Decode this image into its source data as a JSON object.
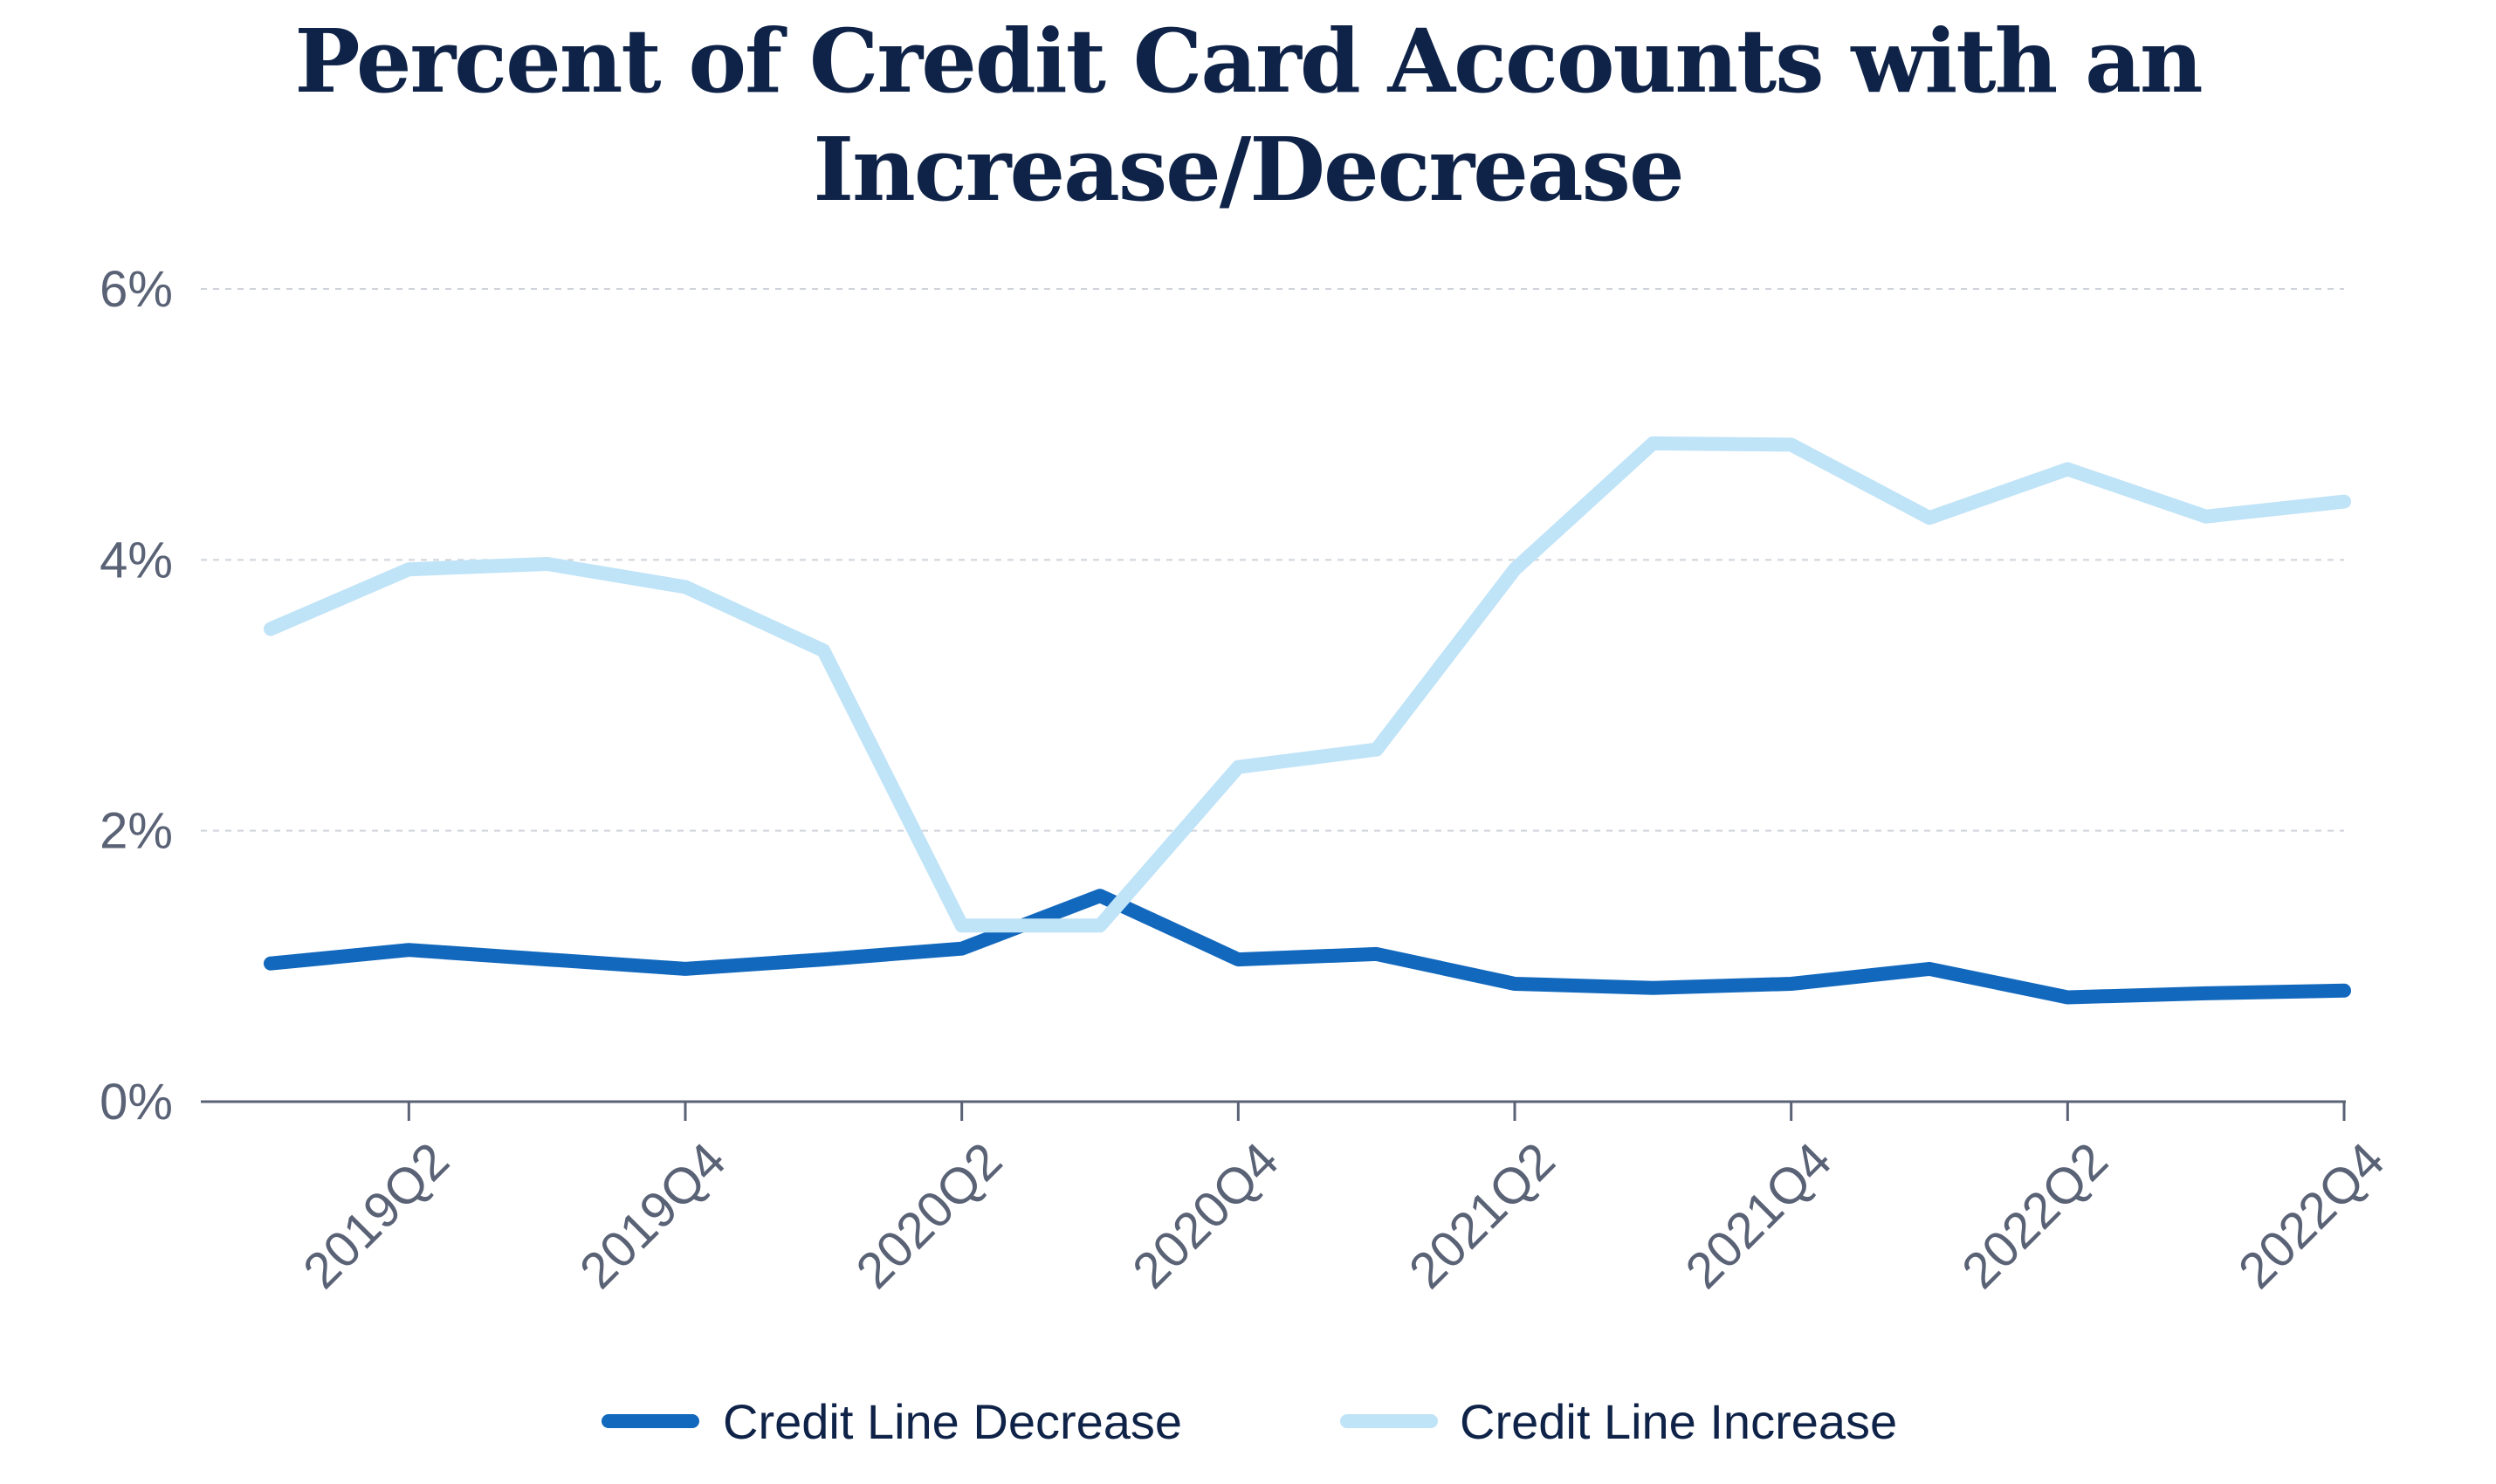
{
  "colors": {
    "title": "#0f2348",
    "axis_text": "#5a6276",
    "axis_line": "#5a6276",
    "grid": "#cfd3da",
    "decrease": "#1268bd",
    "increase": "#bfe3f7"
  },
  "chart_data": {
    "type": "line",
    "title_lines": [
      "Percent of Credit Card Accounts with an",
      "Increase/Decrease"
    ],
    "xlabel": "",
    "ylabel": "",
    "x": [
      "2019Q1",
      "2019Q2",
      "2019Q3",
      "2019Q4",
      "2020Q1",
      "2020Q2",
      "2020Q3",
      "2020Q4",
      "2021Q1",
      "2021Q2",
      "2021Q3",
      "2021Q4",
      "2022Q1",
      "2022Q2",
      "2022Q3",
      "2022Q4"
    ],
    "x_tick_labels": [
      "2019Q2",
      "2019Q4",
      "2020Q2",
      "2020Q4",
      "2021Q2",
      "2021Q4",
      "2022Q2",
      "2022Q4"
    ],
    "y_ticks": [
      0,
      2,
      4,
      6
    ],
    "y_tick_labels": [
      "0%",
      "2%",
      "4%",
      "6%"
    ],
    "ylim": [
      0,
      6
    ],
    "grid": "horizontal dashed",
    "legend_position": "bottom",
    "series": [
      {
        "name": "Credit Line Decrease",
        "color": "#1268bd",
        "values": [
          1.02,
          1.12,
          1.05,
          0.98,
          1.05,
          1.13,
          1.52,
          1.05,
          1.09,
          0.87,
          0.84,
          0.87,
          0.98,
          0.77,
          0.8,
          0.82
        ]
      },
      {
        "name": "Credit Line Increase",
        "color": "#bfe3f7",
        "values": [
          3.49,
          3.93,
          3.97,
          3.8,
          3.33,
          1.3,
          1.3,
          2.47,
          2.6,
          3.93,
          4.86,
          4.85,
          4.31,
          4.67,
          4.32,
          4.43
        ]
      }
    ]
  }
}
